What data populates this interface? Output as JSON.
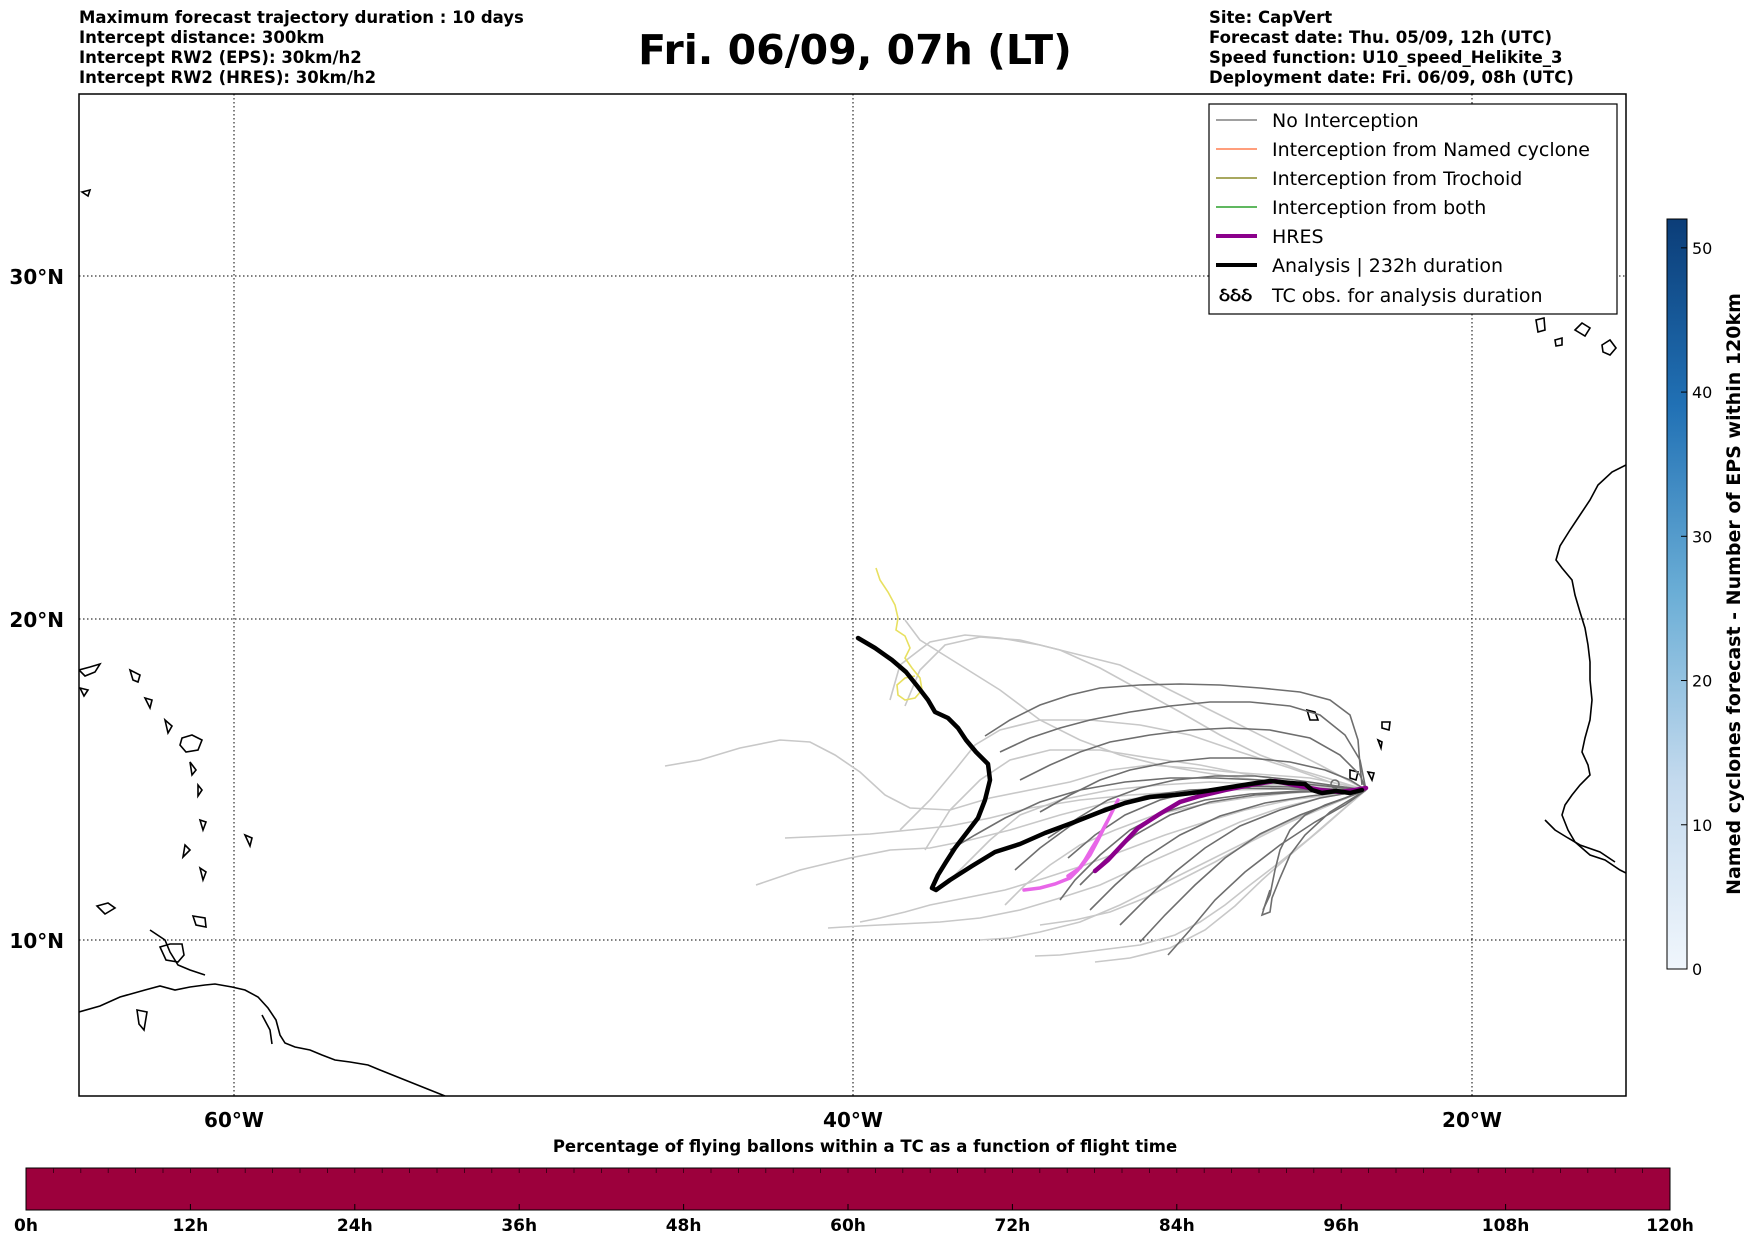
{
  "header_left": [
    "Maximum forecast trajectory duration : 10 days",
    "Intercept distance: 300km",
    "Intercept RW2 (EPS):  30km/h2",
    "Intercept RW2 (HRES): 30km/h2"
  ],
  "header_right": [
    "Site: CapVert",
    "Forecast date: Thu. 05/09, 12h (UTC)",
    "Speed function: U10_speed_Helikite_3",
    "Deployment date: Fri. 06/09, 08h (UTC)"
  ],
  "title": "Fri. 06/09, 07h (LT)",
  "map": {
    "lat_labels": [
      "30°N",
      "20°N",
      "10°N"
    ],
    "lon_labels": [
      "60°W",
      "40°W",
      "20°W"
    ],
    "lat_range": [
      5.4,
      34.5
    ],
    "lon_range": [
      -65,
      -15
    ]
  },
  "legend": {
    "items": [
      {
        "label": "No Interception",
        "color": "#808080",
        "style": "thin"
      },
      {
        "label": "Interception from Named cyclone",
        "color": "#ff7f50",
        "style": "thin"
      },
      {
        "label": "Interception from Trochoid",
        "color": "#8b8b2a",
        "style": "thin"
      },
      {
        "label": "Interception from both",
        "color": "#2ca02c",
        "style": "thin"
      },
      {
        "label": "HRES",
        "color": "#8b008b",
        "style": "thick"
      },
      {
        "label": "Analysis | 232h duration",
        "color": "#000000",
        "style": "thick"
      },
      {
        "label": "TC obs. for analysis duration",
        "color": "#000000",
        "style": "tc-symbol"
      }
    ],
    "tc_symbol": "ઠઠઠ"
  },
  "colorbar_right": {
    "title": "Named cyclones forecast - Number of EPS within 120km",
    "ticks": [
      "0",
      "10",
      "20",
      "30",
      "40",
      "50"
    ],
    "range": [
      0,
      52
    ],
    "colors": [
      "#f0f6fc",
      "#0b3d78"
    ]
  },
  "colorbar_bottom": {
    "title": "Percentage of flying ballons within a TC as a function of flight time",
    "ticks": [
      "0h",
      "12h",
      "24h",
      "36h",
      "48h",
      "60h",
      "72h",
      "84h",
      "96h",
      "108h",
      "120h"
    ],
    "fill_color": "#9c003c"
  },
  "colors": {
    "ens_light": "#c8c8c8",
    "ens_dark": "#6e6e6e",
    "yellow_track": "#e8e060",
    "hres": "#8b008b",
    "hres_light": "#e866e8",
    "analysis": "#000000"
  }
}
